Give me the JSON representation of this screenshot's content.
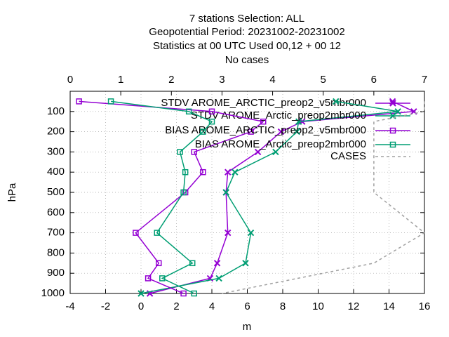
{
  "chart_data": {
    "type": "line",
    "title": [
      "7 stations Selection: ALL",
      "Geopotential  Period: 20231002-20231002",
      "Statistics at 00 UTC  Used  00,12  + 00 12",
      "No cases"
    ],
    "xlabel": "m",
    "ylabel": "hPa",
    "xlim": [
      -4,
      16
    ],
    "xticks": [
      -4,
      -2,
      0,
      2,
      4,
      6,
      8,
      10,
      12,
      14,
      16
    ],
    "x2lim": [
      0,
      7
    ],
    "x2ticks": [
      0,
      1,
      2,
      3,
      4,
      5,
      6,
      7
    ],
    "ylim": [
      1000,
      0
    ],
    "yticks": [
      100,
      200,
      300,
      400,
      500,
      600,
      700,
      800,
      900,
      1000
    ],
    "grid": true,
    "legend": "top-right",
    "y": [
      50,
      100,
      150,
      200,
      300,
      400,
      500,
      700,
      850,
      925,
      1000
    ],
    "series": [
      {
        "name": "STDV AROME_ARCTIC_preop2_v5mbr000",
        "color": "#9400d3",
        "marker": "x",
        "values": [
          14.2,
          15.4,
          9.1,
          7.9,
          6.6,
          4.9,
          4.8,
          4.9,
          4.3,
          3.9,
          0.5
        ]
      },
      {
        "name": "STDV AROME_Arctic_preop2mbr000",
        "color": "#009e73",
        "marker": "x",
        "values": [
          11.0,
          14.5,
          8.9,
          8.8,
          7.6,
          5.3,
          4.8,
          6.2,
          5.9,
          4.4,
          0.0
        ]
      },
      {
        "name": "BIAS AROME_ARCTIC_preop2_v5mbr000",
        "color": "#9400d3",
        "marker": "square",
        "values": [
          -3.5,
          4.0,
          6.9,
          6.2,
          3.0,
          3.5,
          2.5,
          -0.3,
          1.0,
          0.4,
          2.4
        ]
      },
      {
        "name": "BIAS AROME_Arctic_preop2mbr000",
        "color": "#009e73",
        "marker": "square",
        "values": [
          -1.7,
          2.7,
          4.0,
          3.5,
          2.2,
          2.5,
          2.4,
          0.9,
          2.9,
          1.2,
          3.0
        ]
      },
      {
        "name": "CASES",
        "color": "#a0a0a0",
        "marker": "none",
        "dashed": true,
        "axis": "x2",
        "values": [
          7,
          7,
          6,
          6,
          6,
          6,
          6,
          7,
          6,
          4.5,
          3
        ]
      }
    ]
  }
}
